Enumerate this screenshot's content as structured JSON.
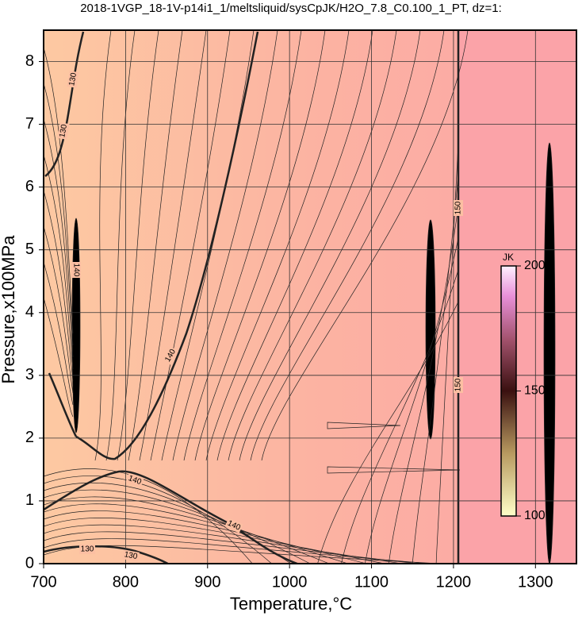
{
  "chart_data": {
    "type": "contour",
    "title": "2018-1VGP_18-1V-p14i1_1/meltsliquid/sysCpJK/H2O_7.8_C0.100_1_PT, dz=1:",
    "x_label": "Temperature,°C",
    "y_label": "Pressure,x100MPa",
    "xlim": [
      700,
      1350
    ],
    "xticks": [
      700,
      800,
      900,
      1000,
      1100,
      1200,
      1300
    ],
    "ylim": [
      0,
      8.5
    ],
    "yticks": [
      0,
      1,
      2,
      3,
      4,
      5,
      6,
      7,
      8
    ],
    "grid": true,
    "contour_labels": [
      130,
      130,
      140,
      140,
      140,
      140,
      130,
      130,
      150,
      150
    ],
    "colorbar": {
      "label": "JK",
      "lim": [
        100,
        200
      ],
      "ticks": [
        100,
        150,
        200
      ]
    }
  }
}
